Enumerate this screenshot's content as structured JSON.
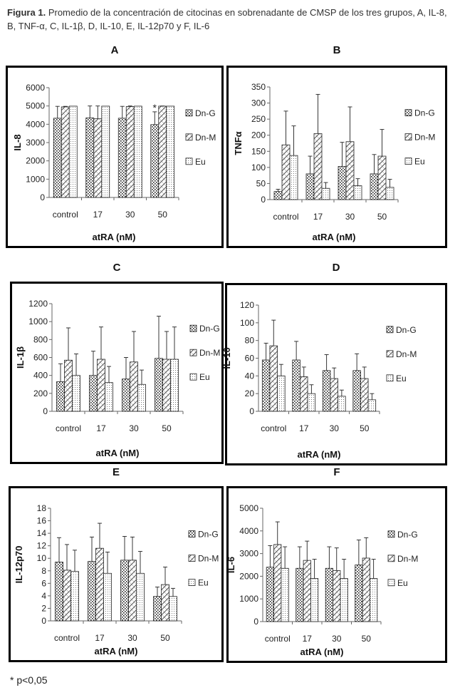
{
  "caption": {
    "label": "Figura 1.",
    "text": "Promedio de la concentración de citocinas en sobrenadante de CMSP de los tres grupos, A, IL-8, B, TNF-α, C, IL-1β, D, IL-10, E, IL-12p70 y F, IL-6"
  },
  "footnote": "* p<0,05",
  "chart_data": [
    {
      "panel": "A",
      "type": "bar",
      "ylabel": "IL-8",
      "xlabel": "atRA (nM)",
      "categories": [
        "control",
        "17",
        "30",
        "50"
      ],
      "ylim": [
        0,
        6000
      ],
      "yticks": [
        0,
        1000,
        2000,
        3000,
        4000,
        5000,
        6000
      ],
      "series": [
        {
          "name": "Dn-G",
          "values": [
            4330,
            4350,
            4330,
            3980
          ],
          "errors": [
            650,
            650,
            650,
            700
          ]
        },
        {
          "name": "Dn-M",
          "values": [
            4950,
            4300,
            4970,
            4990
          ],
          "errors": [
            30,
            700,
            30,
            10
          ]
        },
        {
          "name": "Eu",
          "values": [
            4990,
            4990,
            4990,
            4990
          ],
          "errors": [
            0,
            0,
            0,
            0
          ]
        }
      ],
      "annotations": [
        {
          "category": "50",
          "series": "Dn-G",
          "text": "*"
        }
      ]
    },
    {
      "panel": "B",
      "type": "bar",
      "ylabel": "TNFα",
      "xlabel": "atRA (nM)",
      "categories": [
        "control",
        "17",
        "30",
        "50"
      ],
      "ylim": [
        0,
        350
      ],
      "yticks": [
        0,
        50,
        100,
        150,
        200,
        250,
        300,
        350
      ],
      "series": [
        {
          "name": "Dn-G",
          "values": [
            25,
            80,
            103,
            80
          ],
          "errors": [
            7,
            55,
            75,
            60
          ]
        },
        {
          "name": "Dn-M",
          "values": [
            170,
            205,
            180,
            135
          ],
          "errors": [
            105,
            122,
            108,
            83
          ]
        },
        {
          "name": "Eu",
          "values": [
            137,
            35,
            43,
            38
          ],
          "errors": [
            92,
            18,
            22,
            25
          ]
        }
      ]
    },
    {
      "panel": "C",
      "type": "bar",
      "ylabel": "IL-1β",
      "xlabel": "atRA (nM)",
      "categories": [
        "control",
        "17",
        "30",
        "50"
      ],
      "ylim": [
        0,
        1200
      ],
      "yticks": [
        0,
        200,
        400,
        600,
        800,
        1000,
        1200
      ],
      "series": [
        {
          "name": "Dn-G",
          "values": [
            330,
            400,
            360,
            590
          ],
          "errors": [
            200,
            270,
            240,
            470
          ]
        },
        {
          "name": "Dn-M",
          "values": [
            570,
            580,
            550,
            580
          ],
          "errors": [
            360,
            360,
            340,
            310
          ]
        },
        {
          "name": "Eu",
          "values": [
            400,
            320,
            300,
            580
          ],
          "errors": [
            240,
            180,
            160,
            360
          ]
        }
      ]
    },
    {
      "panel": "D",
      "type": "bar",
      "ylabel": "IL-10",
      "xlabel": "atRA (nM)",
      "categories": [
        "control",
        "17",
        "30",
        "50"
      ],
      "ylim": [
        0,
        120
      ],
      "yticks": [
        0,
        20,
        40,
        60,
        80,
        100,
        120
      ],
      "series": [
        {
          "name": "Dn-G",
          "values": [
            58,
            58,
            46,
            46
          ],
          "errors": [
            19,
            21,
            18,
            19
          ]
        },
        {
          "name": "Dn-M",
          "values": [
            74,
            39,
            37,
            37
          ],
          "errors": [
            29,
            11,
            12,
            13
          ]
        },
        {
          "name": "Eu",
          "values": [
            40,
            20,
            17,
            13
          ],
          "errors": [
            13,
            10,
            7,
            7
          ]
        }
      ]
    },
    {
      "panel": "E",
      "type": "bar",
      "ylabel": "IL-12p70",
      "xlabel": "atRA (nM)",
      "categories": [
        "control",
        "17",
        "30",
        "50"
      ],
      "ylim": [
        0,
        18
      ],
      "yticks": [
        0,
        2,
        4,
        6,
        8,
        10,
        12,
        14,
        16,
        18
      ],
      "series": [
        {
          "name": "Dn-G",
          "values": [
            9.4,
            9.5,
            9.7,
            3.9
          ],
          "errors": [
            3.9,
            3.9,
            3.8,
            1.5
          ]
        },
        {
          "name": "Dn-M",
          "values": [
            8.1,
            11.6,
            9.7,
            5.8
          ],
          "errors": [
            4.1,
            4.0,
            3.7,
            2.8
          ]
        },
        {
          "name": "Eu",
          "values": [
            7.9,
            7.6,
            7.6,
            3.9
          ],
          "errors": [
            3.4,
            3.4,
            3.5,
            1.3
          ]
        }
      ]
    },
    {
      "panel": "F",
      "type": "bar",
      "ylabel": "IL-6",
      "xlabel": "atRA (nM)",
      "categories": [
        "control",
        "17",
        "30",
        "50"
      ],
      "ylim": [
        0,
        5000
      ],
      "yticks": [
        0,
        1000,
        2000,
        3000,
        4000,
        5000
      ],
      "series": [
        {
          "name": "Dn-G",
          "values": [
            2400,
            2350,
            2350,
            2500
          ],
          "errors": [
            950,
            950,
            950,
            1100
          ]
        },
        {
          "name": "Dn-M",
          "values": [
            3400,
            2700,
            2250,
            2800
          ],
          "errors": [
            1000,
            850,
            1000,
            900
          ]
        },
        {
          "name": "Eu",
          "values": [
            2350,
            1900,
            1900,
            1900
          ],
          "errors": [
            950,
            850,
            850,
            850
          ]
        }
      ]
    }
  ]
}
